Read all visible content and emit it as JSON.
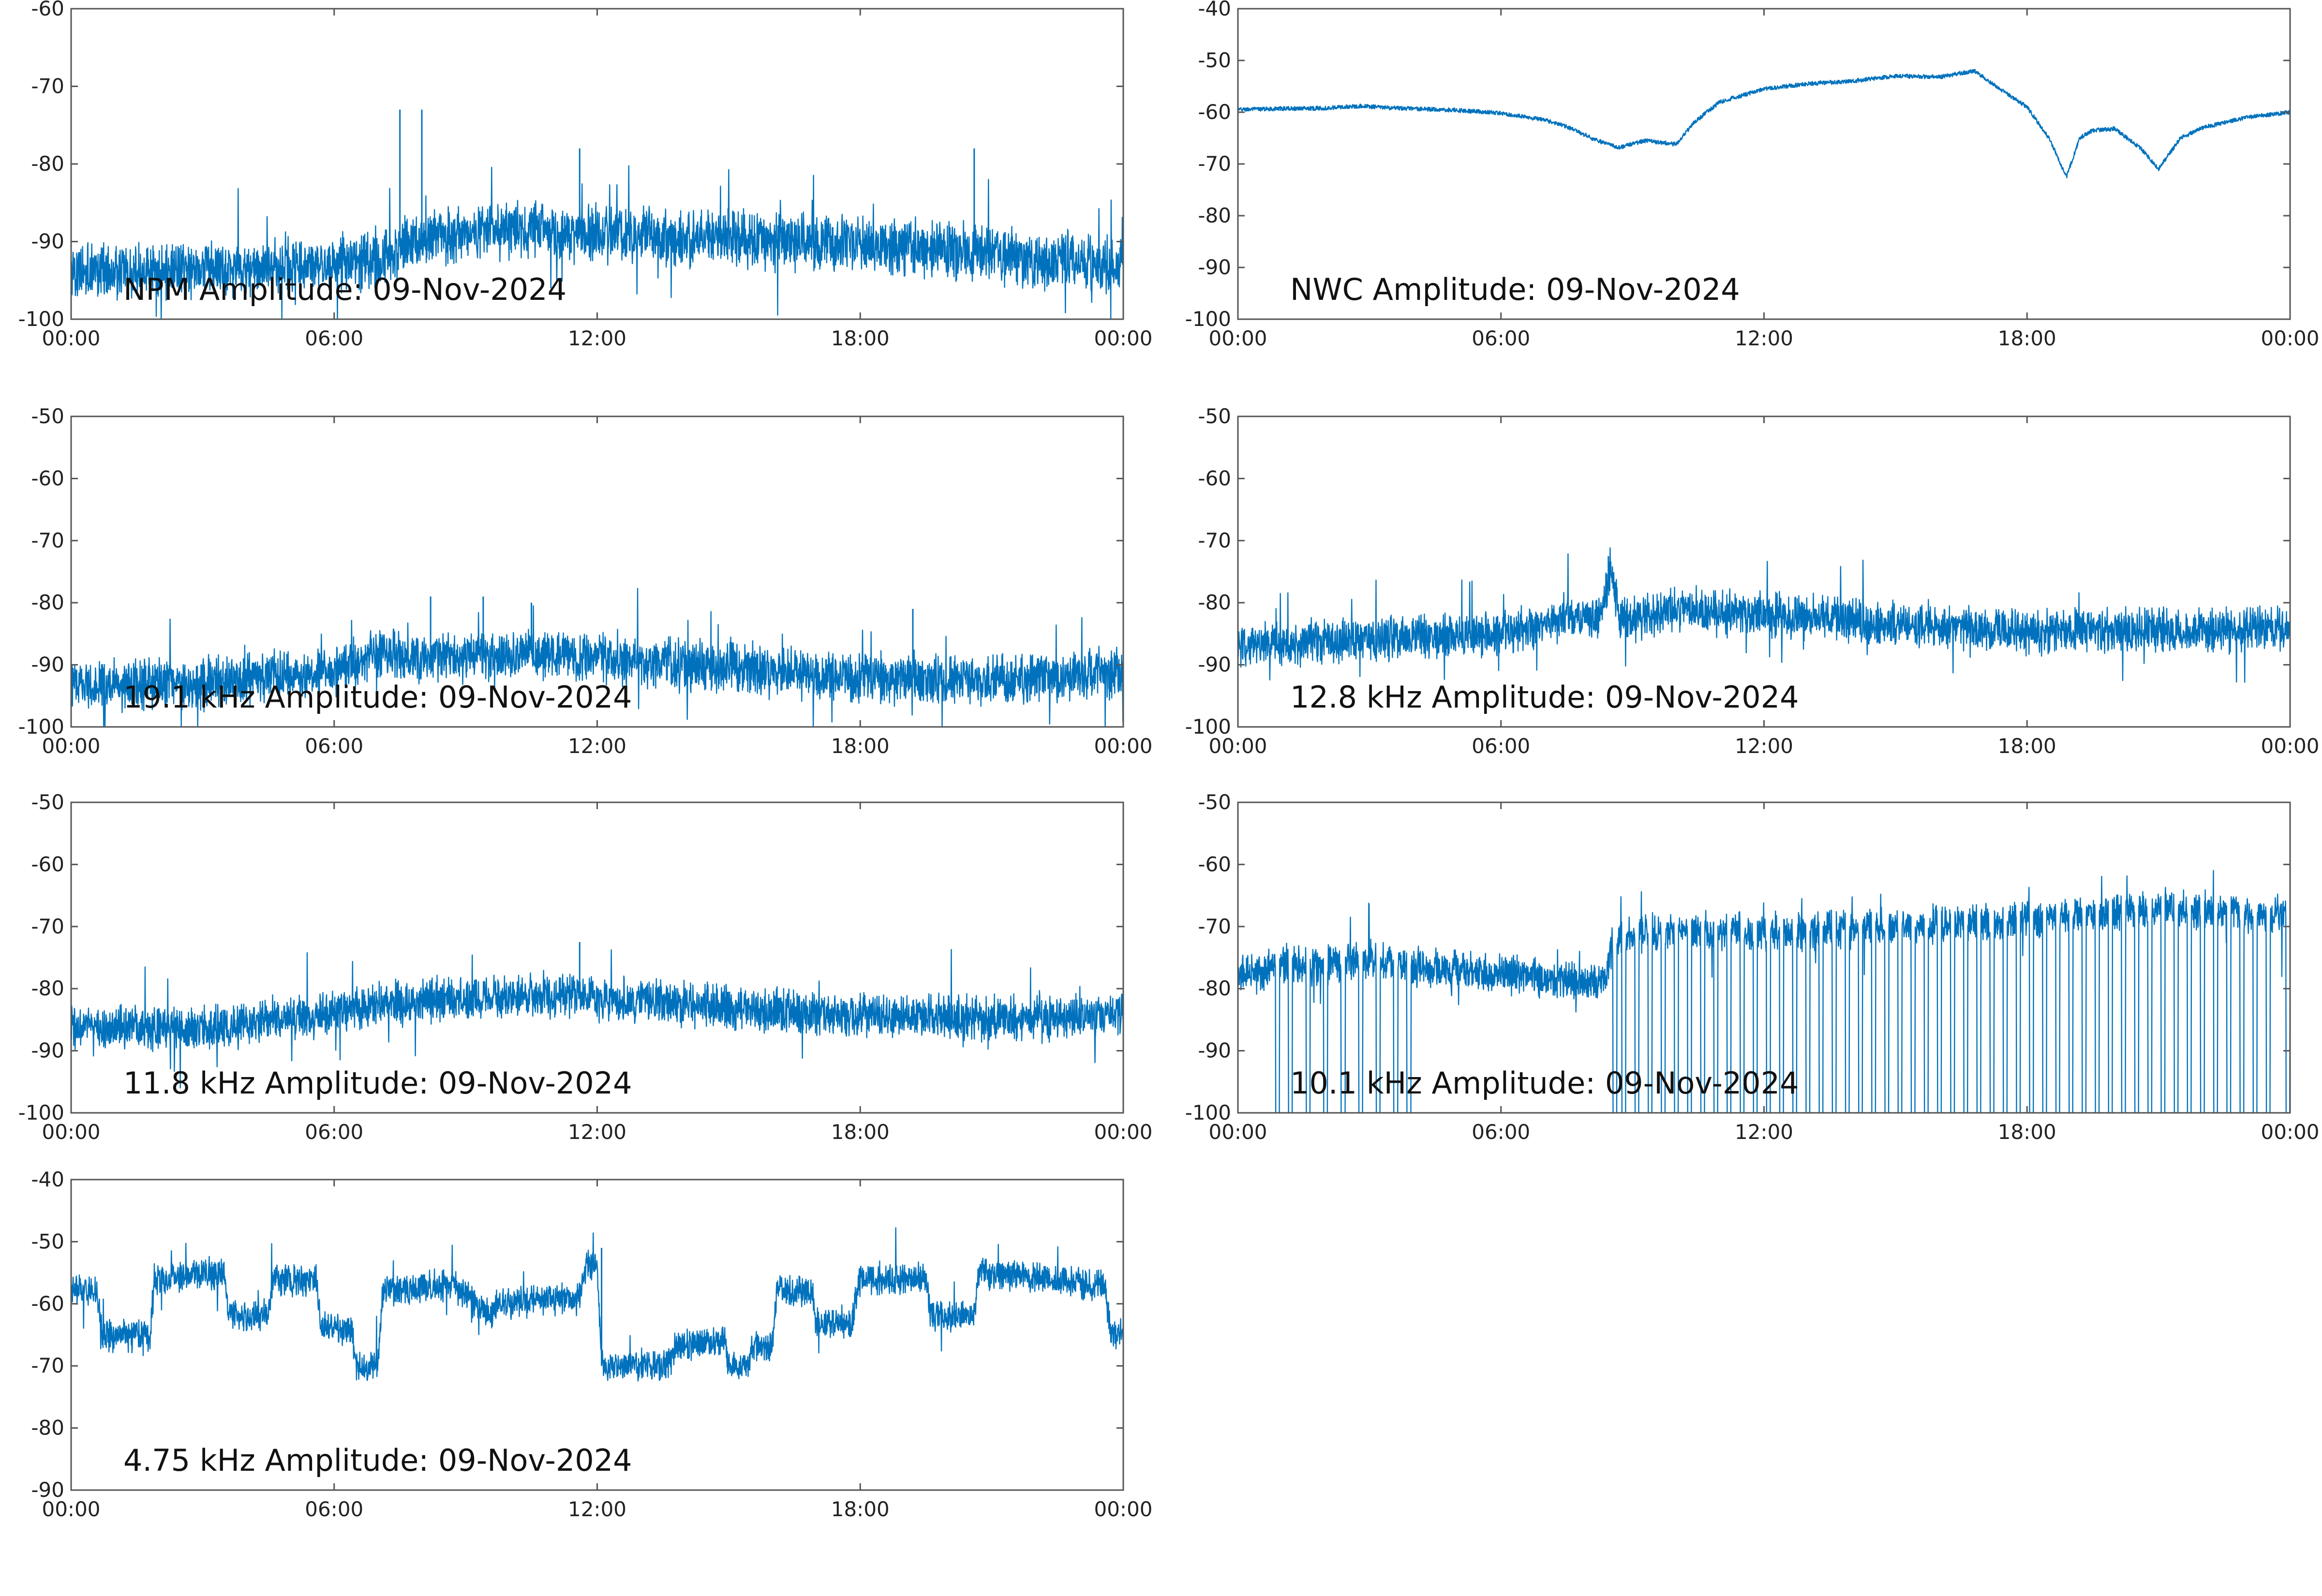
{
  "chart_data": [
    {
      "type": "line",
      "title": "NPM Amplitude: 09-Nov-2024",
      "xlabel": "",
      "ylabel": "",
      "xlim_hours": [
        0,
        24
      ],
      "xticks": [
        "00:00",
        "06:00",
        "12:00",
        "18:00",
        "00:00"
      ],
      "ylim": [
        -100,
        -60
      ],
      "yticks": [
        "-60",
        "-70",
        "-80",
        "-90",
        "-100"
      ],
      "grid": false,
      "noise_amplitude_db": 3.5,
      "series": [
        {
          "x": [
            0,
            2,
            4,
            6,
            7.3,
            7.6,
            9,
            10,
            12,
            14,
            16,
            18,
            20,
            22,
            24
          ],
          "values": [
            -94,
            -94,
            -93.5,
            -93,
            -92,
            -90,
            -89,
            -88.5,
            -89,
            -89.5,
            -90,
            -90.5,
            -91,
            -92.5,
            -93
          ],
          "color": "#0072BD"
        }
      ],
      "spikes": [
        {
          "x": 7.5,
          "y": -73
        },
        {
          "x": 8.0,
          "y": -73
        },
        {
          "x": 11.6,
          "y": -78
        },
        {
          "x": 20.6,
          "y": -78
        }
      ]
    },
    {
      "type": "line",
      "title": "NWC Amplitude: 09-Nov-2024",
      "xlabel": "",
      "ylabel": "",
      "xlim_hours": [
        0,
        24
      ],
      "xticks": [
        "00:00",
        "06:00",
        "12:00",
        "18:00",
        "00:00"
      ],
      "ylim": [
        -100,
        -40
      ],
      "yticks": [
        "-40",
        "-50",
        "-60",
        "-70",
        "-80",
        "-90",
        "-100"
      ],
      "grid": false,
      "noise_amplitude_db": 0.4,
      "series": [
        {
          "x": [
            0,
            1,
            2,
            2.8,
            3.5,
            5,
            6,
            7,
            7.5,
            8.2,
            8.7,
            9.3,
            10,
            10.4,
            11,
            12,
            13,
            14,
            15,
            16,
            16.8,
            17.3,
            18,
            18.5,
            18.9,
            19.2,
            19.5,
            20,
            20.6,
            21,
            21.5,
            22,
            23,
            24
          ],
          "values": [
            -59.5,
            -59.3,
            -59.2,
            -58.8,
            -59.2,
            -59.6,
            -60.2,
            -61.5,
            -62.8,
            -65.5,
            -66.8,
            -65.5,
            -66.2,
            -62,
            -58,
            -55.5,
            -54.5,
            -54,
            -53,
            -53.2,
            -52,
            -55,
            -59,
            -65,
            -72.5,
            -65,
            -63.5,
            -63.2,
            -67,
            -71,
            -65,
            -63,
            -61,
            -60
          ],
          "color": "#0072BD"
        }
      ],
      "spikes": []
    },
    {
      "type": "line",
      "title": "19.1 kHz Amplitude: 09-Nov-2024",
      "xlabel": "",
      "ylabel": "",
      "xlim_hours": [
        0,
        24
      ],
      "xticks": [
        "00:00",
        "06:00",
        "12:00",
        "18:00",
        "00:00"
      ],
      "ylim": [
        -100,
        -50
      ],
      "yticks": [
        "-50",
        "-60",
        "-70",
        "-80",
        "-90",
        "-100"
      ],
      "grid": false,
      "noise_amplitude_db": 4,
      "series": [
        {
          "x": [
            0,
            3,
            6,
            7,
            9,
            11,
            13,
            15,
            18,
            21,
            24
          ],
          "values": [
            -93,
            -93,
            -91,
            -88.5,
            -89,
            -88,
            -89.5,
            -90.5,
            -92,
            -92.5,
            -91.5
          ],
          "color": "#0072BD"
        }
      ],
      "spikes": [
        {
          "x": 8.2,
          "y": -79
        },
        {
          "x": 9.4,
          "y": -79
        },
        {
          "x": 10.5,
          "y": -80
        },
        {
          "x": 19.2,
          "y": -81
        }
      ]
    },
    {
      "type": "line",
      "title": "12.8 kHz Amplitude: 09-Nov-2024",
      "xlabel": "",
      "ylabel": "",
      "xlim_hours": [
        0,
        24
      ],
      "xticks": [
        "00:00",
        "06:00",
        "12:00",
        "18:00",
        "00:00"
      ],
      "ylim": [
        -100,
        -50
      ],
      "yticks": [
        "-50",
        "-60",
        "-70",
        "-80",
        "-90",
        "-100"
      ],
      "grid": false,
      "noise_amplitude_db": 3.5,
      "series": [
        {
          "x": [
            0,
            3,
            6,
            7.5,
            8.3,
            8.5,
            8.7,
            10,
            12,
            15,
            18,
            21,
            24
          ],
          "values": [
            -87,
            -86,
            -85,
            -83,
            -82.5,
            -74,
            -83,
            -81,
            -82,
            -83.5,
            -84.5,
            -84.5,
            -84
          ],
          "color": "#0072BD"
        }
      ],
      "spikes": [
        {
          "x": 8.45,
          "y": -72.5
        }
      ]
    },
    {
      "type": "line",
      "title": "11.8 kHz Amplitude: 09-Nov-2024",
      "xlabel": "",
      "ylabel": "",
      "xlim_hours": [
        0,
        24
      ],
      "xticks": [
        "00:00",
        "06:00",
        "12:00",
        "18:00",
        "00:00"
      ],
      "ylim": [
        -100,
        -50
      ],
      "yticks": [
        "-50",
        "-60",
        "-70",
        "-80",
        "-90",
        "-100"
      ],
      "grid": false,
      "noise_amplitude_db": 3.5,
      "series": [
        {
          "x": [
            0,
            3,
            5,
            7,
            9,
            11,
            13,
            16,
            19,
            22,
            24
          ],
          "values": [
            -86,
            -86.5,
            -85,
            -82.5,
            -81.5,
            -81,
            -82,
            -83.5,
            -84.5,
            -85,
            -84
          ],
          "color": "#0072BD"
        }
      ],
      "spikes": [
        {
          "x": 11.6,
          "y": -72.5
        }
      ]
    },
    {
      "type": "line",
      "title": "10.1 kHz Amplitude: 09-Nov-2024",
      "xlabel": "",
      "ylabel": "",
      "xlim_hours": [
        0,
        24
      ],
      "xticks": [
        "00:00",
        "06:00",
        "12:00",
        "18:00",
        "00:00"
      ],
      "ylim": [
        -100,
        -50
      ],
      "yticks": [
        "-50",
        "-60",
        "-70",
        "-80",
        "-90",
        "-100"
      ],
      "grid": false,
      "noise_amplitude_db": 3,
      "series": [
        {
          "x": [
            0,
            1,
            3,
            4,
            5,
            6,
            7,
            8.4,
            8.5,
            10,
            12,
            15,
            18,
            21,
            24
          ],
          "values": [
            -78,
            -76.5,
            -75.5,
            -76.5,
            -77,
            -77.5,
            -78.5,
            -79,
            -72,
            -70.5,
            -71,
            -70,
            -69,
            -67,
            -68
          ],
          "color": "#0072BD"
        }
      ],
      "dropouts_hours": [
        0.9,
        1.2,
        1.6,
        2.0,
        2.4,
        2.8,
        3.2,
        3.6,
        3.9,
        8.6,
        8.8,
        9.1,
        9.4,
        9.7,
        10.0,
        10.3,
        10.6,
        10.9,
        11.2,
        11.5,
        11.8,
        12.1,
        12.4,
        12.7,
        13.0,
        13.3,
        13.6,
        13.9,
        14.2,
        14.5,
        14.8,
        15.1,
        15.4,
        15.7,
        16.0,
        16.3,
        16.6,
        16.9,
        17.2,
        17.5,
        17.8,
        18.1,
        18.4,
        18.7,
        19.0,
        19.3,
        19.6,
        19.9,
        20.2,
        20.5,
        20.8,
        21.1,
        21.4,
        21.7,
        22.0,
        22.3,
        22.6,
        22.9,
        23.2,
        23.5,
        23.95
      ],
      "spikes": []
    },
    {
      "type": "line",
      "title": "4.75 kHz Amplitude: 09-Nov-2024",
      "xlabel": "",
      "ylabel": "",
      "xlim_hours": [
        0,
        24
      ],
      "xticks": [
        "00:00",
        "06:00",
        "12:00",
        "18:00",
        "00:00"
      ],
      "ylim": [
        -90,
        -40
      ],
      "yticks": [
        "-40",
        "-50",
        "-60",
        "-70",
        "-80",
        "-90"
      ],
      "grid": false,
      "noise_amplitude_db": 2.5,
      "series": [
        {
          "x": [
            0,
            0.6,
            0.7,
            1.8,
            1.9,
            3.5,
            3.6,
            4.5,
            4.6,
            5.6,
            5.7,
            6.4,
            6.5,
            7.0,
            7.1,
            8.6,
            8.7,
            9.6,
            9.7,
            11.6,
            11.7,
            12.0,
            12.1,
            13.6,
            13.8,
            14.9,
            15.0,
            15.4,
            15.6,
            16.0,
            16.1,
            16.9,
            17.0,
            17.8,
            18.0,
            19.5,
            19.6,
            20.6,
            20.7,
            23.6,
            23.7,
            24
          ],
          "values": [
            -58,
            -58,
            -65,
            -65,
            -56,
            -55,
            -62,
            -62,
            -56,
            -56,
            -64,
            -64,
            -70,
            -70,
            -58,
            -57,
            -57,
            -62,
            -60,
            -59,
            -54,
            -54,
            -70,
            -70,
            -67,
            -66,
            -70,
            -70,
            -67,
            -67,
            -58,
            -58,
            -63,
            -63,
            -56,
            -56,
            -62,
            -62,
            -55,
            -57,
            -65,
            -65
          ],
          "color": "#0072BD"
        }
      ],
      "spikes": [
        {
          "x": 12.1,
          "y": -51
        }
      ]
    }
  ]
}
